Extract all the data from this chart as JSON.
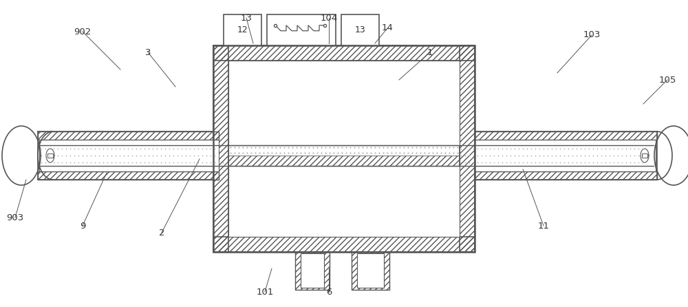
{
  "bg_color": "#ffffff",
  "lc": "#555555",
  "lc_dark": "#333333",
  "figsize": [
    10.0,
    4.46
  ],
  "dpi": 100,
  "hatch_angle": "////",
  "dot_color": "#aaaaaa",
  "gray_fill": "#d8d8d8",
  "light_gray": "#f0f0f0"
}
